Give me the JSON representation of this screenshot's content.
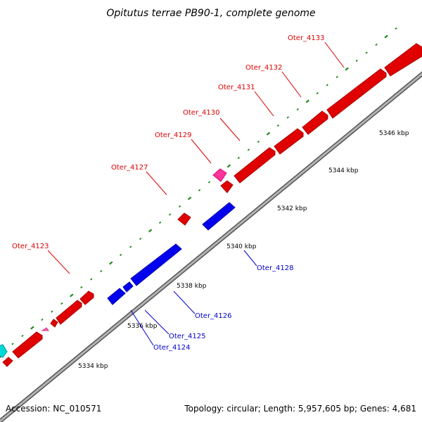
{
  "title": "Opitutus terrae PB90-1, complete genome",
  "accession": "Accession: NC_010571",
  "summary": "Topology: circular; Length: 5,957,605 bp; Genes: 4,681",
  "colors": {
    "forward_cds": "#ff0000",
    "reverse_cds": "#0000ff",
    "forward_rna": "#ff3399",
    "other_feature": "#00e5e5",
    "backbone": "#999999",
    "ticks": "#1a8a1a",
    "forward_label": "#dd0000",
    "reverse_label": "#0000cc"
  },
  "scale_labels": [
    "5334 kbp",
    "5336 kbp",
    "5338 kbp",
    "5340 kbp",
    "5342 kbp",
    "5344 kbp",
    "5346 kbp"
  ],
  "forward_gene_labels": [
    "Oter_4123",
    "Oter_4127",
    "Oter_4129",
    "Oter_4130",
    "Oter_4131",
    "Oter_4132",
    "Oter_4133"
  ],
  "reverse_gene_labels": [
    "Oter_4124",
    "Oter_4125",
    "Oter_4126",
    "Oter_4128"
  ]
}
